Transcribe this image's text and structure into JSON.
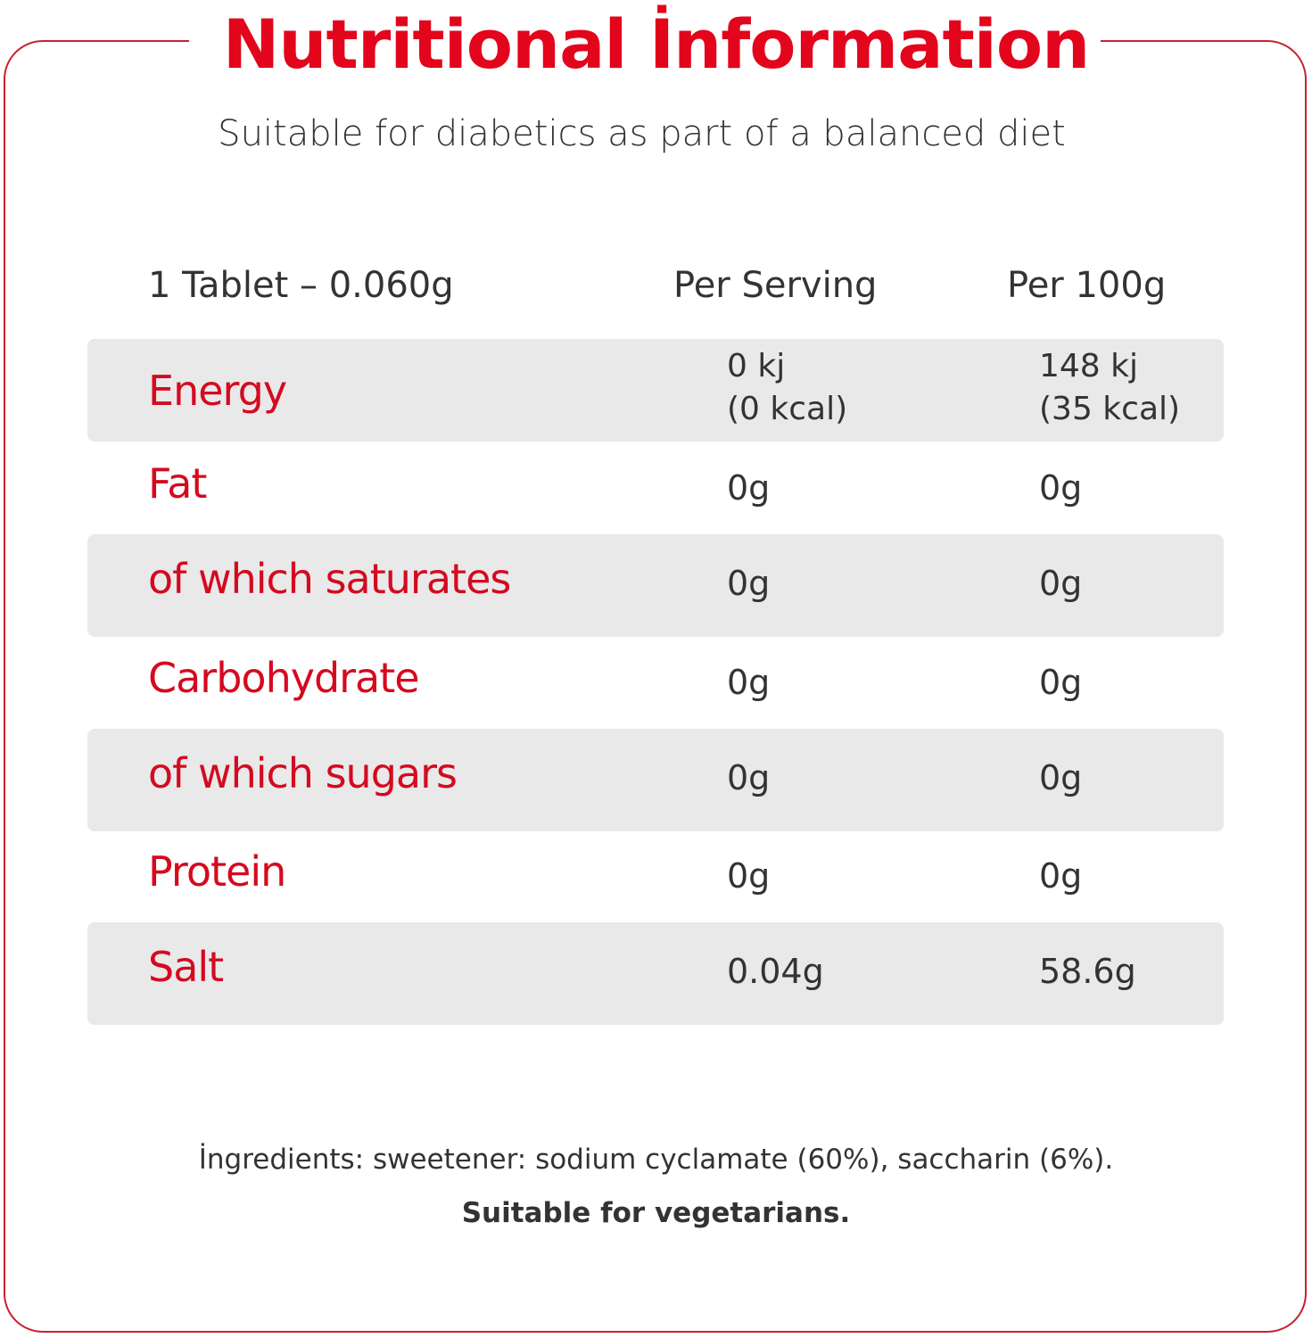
{
  "title": "Nutritional İnformation",
  "subtitle": "Suitable for diabetics as part of a balanced diet",
  "table": {
    "headers": {
      "serving_size": "1 Tablet – 0.060g",
      "per_serving": "Per Serving",
      "per_100g": "Per 100g"
    },
    "rows": [
      {
        "label": "Energy",
        "per_serving_line1": "0 kj",
        "per_serving_line2": "(0 kcal)",
        "per_100g_line1": "148 kj",
        "per_100g_line2": "(35 kcal)"
      },
      {
        "label": "Fat",
        "per_serving": "0g",
        "per_100g": "0g"
      },
      {
        "label": "of which saturates",
        "per_serving": "0g",
        "per_100g": "0g"
      },
      {
        "label": "Carbohydrate",
        "per_serving": "0g",
        "per_100g": "0g"
      },
      {
        "label": "of which sugars",
        "per_serving": "0g",
        "per_100g": "0g"
      },
      {
        "label": "Protein",
        "per_serving": "0g",
        "per_100g": "0g"
      },
      {
        "label": "Salt",
        "per_serving": "0.04g",
        "per_100g": "58.6g"
      }
    ]
  },
  "ingredients": "İngredients: sweetener: sodium cyclamate (60%), saccharin (6%).",
  "vegetarian_note": "Suitable for vegetarians.",
  "colors": {
    "brand_red": "#e3051b",
    "row_shade": "#e9e9ea",
    "text": "#333333"
  }
}
